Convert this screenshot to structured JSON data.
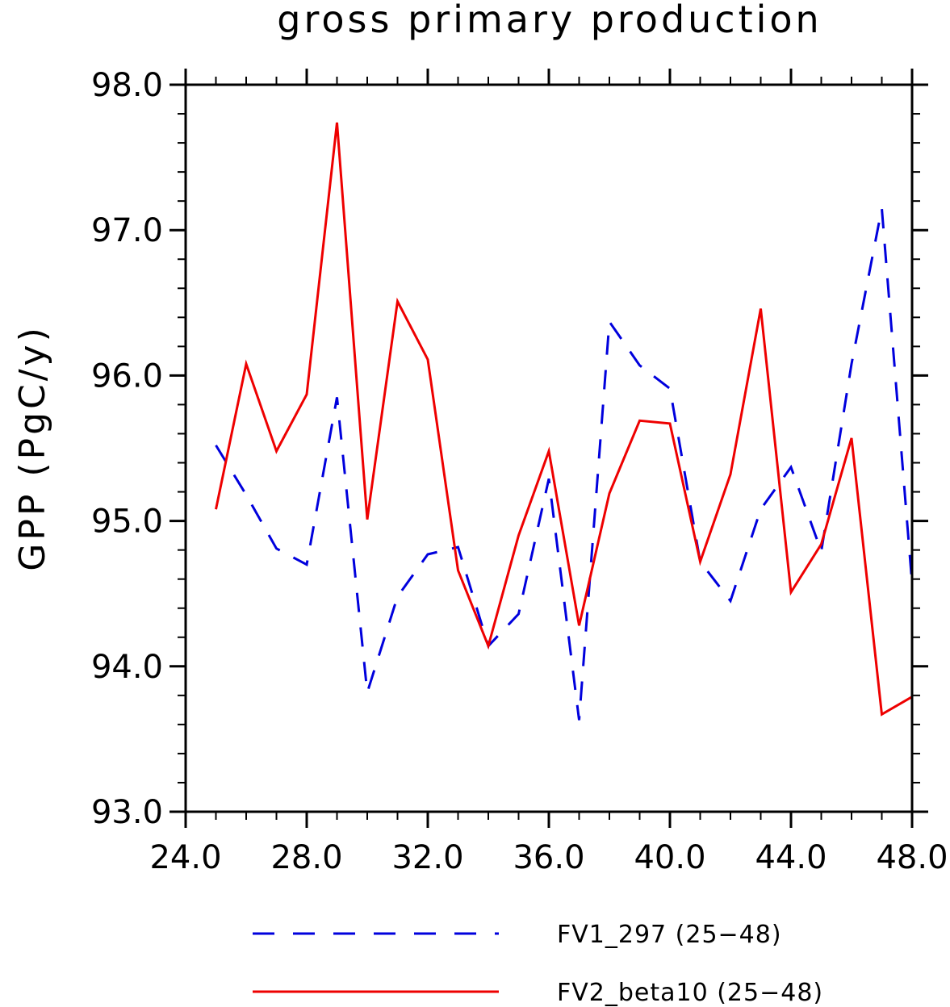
{
  "chart_data": {
    "type": "line",
    "title": "gross primary production",
    "xlabel": "",
    "ylabel": "GPP (PgC/y)",
    "xlim": [
      24,
      48
    ],
    "ylim": [
      93,
      98
    ],
    "xticks": [
      24,
      28,
      32,
      36,
      40,
      44,
      48
    ],
    "xtick_labels": [
      "24.0",
      "28.0",
      "32.0",
      "36.0",
      "40.0",
      "44.0",
      "48.0"
    ],
    "yticks": [
      93,
      94,
      95,
      96,
      97,
      98
    ],
    "ytick_labels": [
      "93.0",
      "94.0",
      "95.0",
      "96.0",
      "97.0",
      "98.0"
    ],
    "grid": false,
    "legend_position": "bottom",
    "x": [
      25,
      26,
      27,
      28,
      29,
      30,
      31,
      32,
      33,
      34,
      35,
      36,
      37,
      38,
      39,
      40,
      41,
      42,
      43,
      44,
      45,
      46,
      47,
      48
    ],
    "series": [
      {
        "name": "FV1_297 (25−48)",
        "color": "#0000dd",
        "style": "dashed",
        "values": [
          95.52,
          95.18,
          94.81,
          94.7,
          95.85,
          93.82,
          94.48,
          94.77,
          94.82,
          94.14,
          94.36,
          95.29,
          93.63,
          96.37,
          96.07,
          95.91,
          94.72,
          94.45,
          95.08,
          95.37,
          94.79,
          96.08,
          97.15,
          94.57
        ]
      },
      {
        "name": "FV2_beta10 (25−48)",
        "color": "#ee0000",
        "style": "solid",
        "values": [
          95.08,
          96.08,
          95.48,
          95.87,
          97.74,
          95.01,
          96.51,
          96.11,
          94.66,
          94.14,
          94.9,
          95.48,
          94.28,
          95.19,
          95.69,
          95.67,
          94.72,
          95.32,
          96.46,
          94.51,
          94.84,
          95.57,
          93.67,
          93.79
        ]
      }
    ]
  }
}
